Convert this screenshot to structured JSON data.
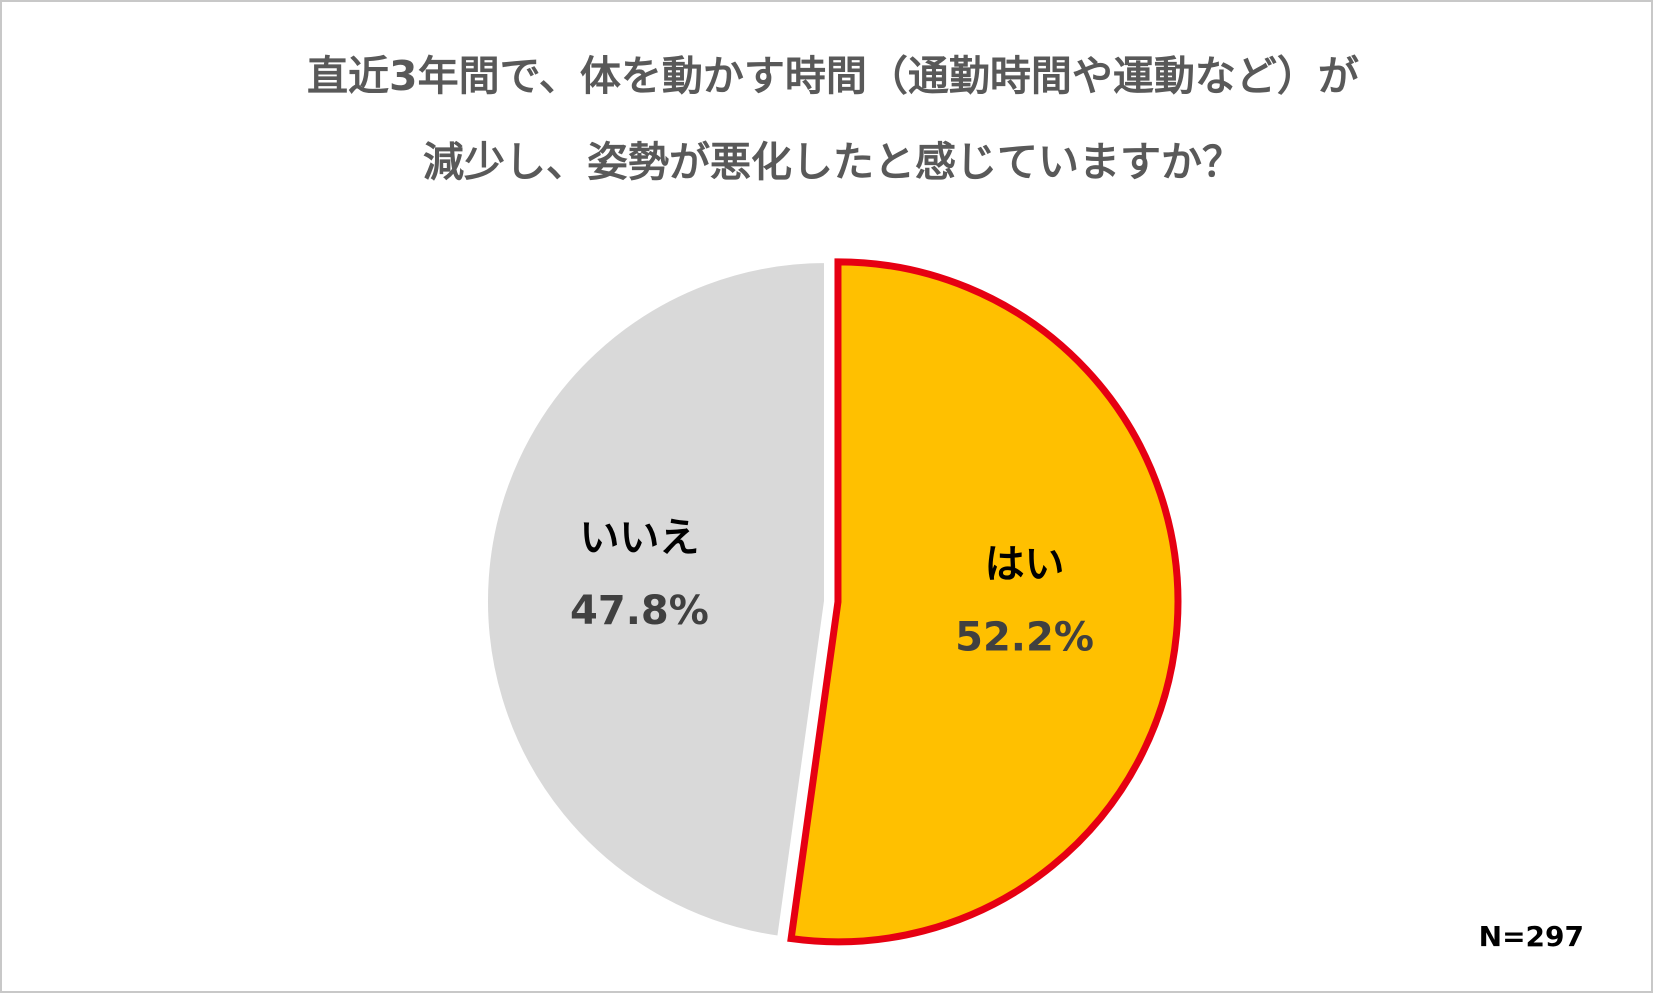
{
  "chart_data": {
    "type": "pie",
    "title": [
      "直近3年間で、体を動かす時間（通勤時間や運動など）が",
      "減少し、姿勢が悪化したと感じていますか？"
    ],
    "categories": [
      "はい",
      "いいえ"
    ],
    "values": [
      52.2,
      47.8
    ],
    "value_labels": [
      "52.2%",
      "47.8%"
    ],
    "colors": [
      "#FFC000",
      "#D9D9D9"
    ],
    "edge_colors": [
      "#E60012",
      "#FFFFFF"
    ],
    "annotation": "N=297"
  }
}
